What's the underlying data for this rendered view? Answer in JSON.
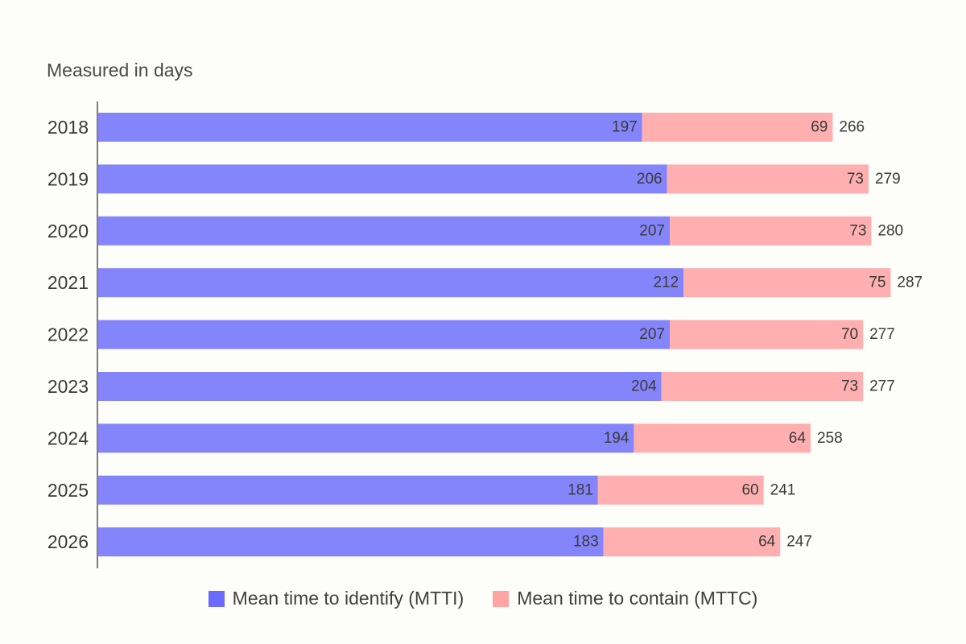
{
  "chart_data": {
    "type": "bar",
    "orientation": "horizontal",
    "stacked": true,
    "subtitle": "Measured in days",
    "categories": [
      "2018",
      "2019",
      "2020",
      "2021",
      "2022",
      "2023",
      "2024",
      "2025",
      "2026"
    ],
    "series": [
      {
        "name": "Mean time to identify (MTTI)",
        "color": "#8585fb",
        "legend_color": "#6a6aff",
        "values": [
          197,
          206,
          207,
          212,
          207,
          204,
          194,
          181,
          183
        ]
      },
      {
        "name": "Mean time to contain (MTTC)",
        "color": "#ffafaf",
        "legend_color": "#ffa3a3",
        "values": [
          69,
          73,
          73,
          75,
          70,
          73,
          64,
          60,
          64
        ]
      }
    ],
    "totals": [
      266,
      279,
      280,
      287,
      277,
      277,
      258,
      241,
      247
    ],
    "xlim": [
      0,
      287
    ],
    "grid": false,
    "legend_position": "bottom-center"
  }
}
